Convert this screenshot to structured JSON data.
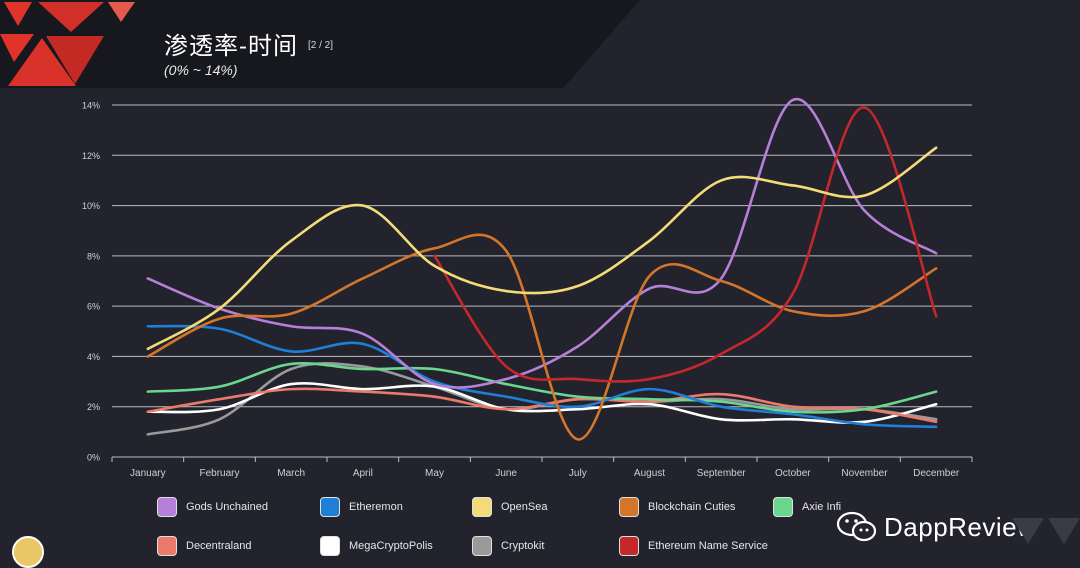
{
  "header": {
    "title": "渗透率-时间",
    "page_indicator": "[2 / 2]",
    "subtitle": "(0% ~ 14%)"
  },
  "watermark": {
    "text": "DappReview",
    "icon": "wechat-icon"
  },
  "colors": {
    "background": "#22232d",
    "header": "#17181d",
    "logo_red": "#e0342b"
  },
  "chart_data": {
    "type": "line",
    "categories": [
      "January",
      "February",
      "March",
      "April",
      "May",
      "June",
      "July",
      "August",
      "September",
      "October",
      "November",
      "December"
    ],
    "ylim": [
      0,
      14
    ],
    "yticks": [
      "0%",
      "2%",
      "4%",
      "6%",
      "8%",
      "10%",
      "12%",
      "14%"
    ],
    "grid": true,
    "legend_position": "bottom",
    "series": [
      {
        "name": "Gods Unchained",
        "color": "#b680d8",
        "values": [
          7.1,
          5.9,
          5.2,
          4.9,
          2.9,
          3.1,
          4.4,
          6.7,
          7.1,
          14.2,
          9.8,
          8.1
        ]
      },
      {
        "name": "Etheremon",
        "color": "#1f7fd6",
        "values": [
          5.2,
          5.1,
          4.2,
          4.5,
          3.0,
          2.4,
          2.0,
          2.7,
          2.0,
          1.7,
          1.3,
          1.2
        ]
      },
      {
        "name": "OpenSea",
        "color": "#f3dc78",
        "values": [
          4.3,
          5.9,
          8.6,
          10.0,
          7.6,
          6.6,
          6.8,
          8.6,
          11.0,
          10.8,
          10.4,
          12.3
        ]
      },
      {
        "name": "Blockchain Cuties",
        "color": "#d5752a",
        "values": [
          4.0,
          5.5,
          5.7,
          7.1,
          8.3,
          8.2,
          0.7,
          7.2,
          7.0,
          5.8,
          5.8,
          7.5
        ]
      },
      {
        "name": "Axie Infinity",
        "color": "#6bd68d",
        "values": [
          2.6,
          2.8,
          3.7,
          3.5,
          3.5,
          2.9,
          2.4,
          2.3,
          2.2,
          1.8,
          1.9,
          2.6
        ]
      },
      {
        "name": "Decentraland",
        "color": "#ec7a6a",
        "values": [
          1.8,
          2.3,
          2.7,
          2.6,
          2.4,
          1.9,
          2.3,
          2.2,
          2.5,
          2.0,
          1.9,
          1.4
        ]
      },
      {
        "name": "MegaCryptoPolis",
        "color": "#ffffff",
        "values": [
          1.8,
          1.9,
          2.9,
          2.7,
          2.8,
          1.9,
          1.9,
          2.1,
          1.5,
          1.5,
          1.4,
          2.1
        ]
      },
      {
        "name": "Cryptokit",
        "color": "#9a9a9a",
        "values": [
          0.9,
          1.5,
          3.5,
          3.6,
          2.8,
          1.9,
          2.3,
          2.2,
          2.3,
          1.9,
          1.9,
          1.5
        ]
      },
      {
        "name": "Ethereum Name Service",
        "color": "#c4282a",
        "values": [
          null,
          null,
          null,
          null,
          8.0,
          3.6,
          3.1,
          3.1,
          4.1,
          6.5,
          13.9,
          5.6
        ]
      }
    ]
  },
  "legend": [
    {
      "label": "Gods Unchained",
      "color": "#b680d8"
    },
    {
      "label": "Etheremon",
      "color": "#1f7fd6"
    },
    {
      "label": "OpenSea",
      "color": "#f3dc78"
    },
    {
      "label": "Blockchain Cuties",
      "color": "#d5752a"
    },
    {
      "label": "Axie Infi",
      "color": "#6bd68d"
    },
    {
      "label": "Decentraland",
      "color": "#ec7a6a"
    },
    {
      "label": "MegaCryptoPolis",
      "color": "#ffffff"
    },
    {
      "label": "Cryptokit",
      "color": "#9a9a9a"
    },
    {
      "label": "Ethereum Name Service",
      "color": "#c4282a"
    }
  ]
}
